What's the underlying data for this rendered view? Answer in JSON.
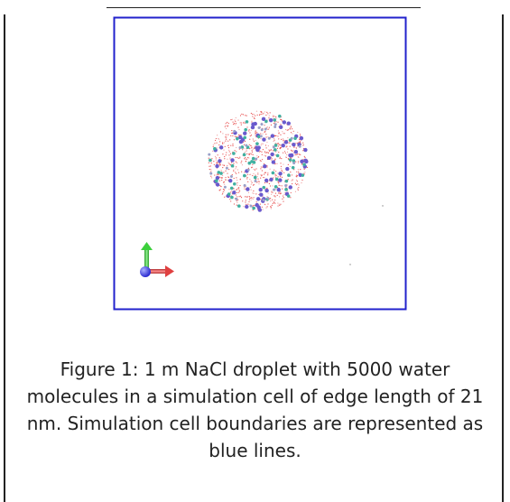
{
  "figure": {
    "caption": "Figure 1: 1 m NaCl droplet with 5000 water molecules in a simulation cell of edge length of 21 nm. Simulation cell boundaries are represented as blue lines."
  }
}
